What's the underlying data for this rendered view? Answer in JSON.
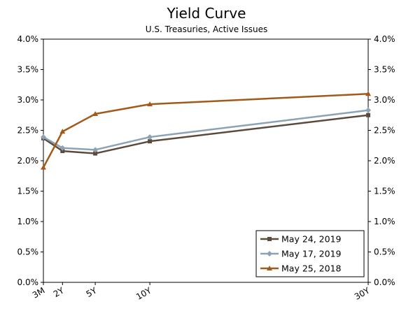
{
  "chart_data": {
    "type": "line",
    "title": "Yield Curve",
    "subtitle": "U.S. Treasuries, Active Issues",
    "xlabel": "",
    "ylabel": "",
    "x_tick_labels": [
      "3M",
      "2Y",
      "5Y",
      "10Y",
      "30Y"
    ],
    "x_positions_years": [
      0.25,
      2,
      5,
      10,
      30
    ],
    "ylim": [
      0,
      0.04
    ],
    "y_ticks": [
      0,
      0.005,
      0.01,
      0.015,
      0.02,
      0.025,
      0.03,
      0.035,
      0.04
    ],
    "y_tick_labels": [
      "0.0%",
      "0.5%",
      "1.0%",
      "1.5%",
      "2.0%",
      "2.5%",
      "3.0%",
      "3.5%",
      "4.0%"
    ],
    "grid": false,
    "legend_position": "bottom-right",
    "series": [
      {
        "name": "May 24, 2019",
        "color": "#5c4a3c",
        "marker": "square",
        "values": [
          0.0237,
          0.0216,
          0.0212,
          0.0232,
          0.0275
        ]
      },
      {
        "name": "May 17, 2019",
        "color": "#8ba3b5",
        "marker": "diamond",
        "values": [
          0.0239,
          0.0221,
          0.0218,
          0.0239,
          0.0283
        ]
      },
      {
        "name": "May 25, 2018",
        "color": "#a25a1a",
        "marker": "triangle",
        "values": [
          0.0189,
          0.0248,
          0.0277,
          0.0293,
          0.031
        ]
      }
    ]
  }
}
